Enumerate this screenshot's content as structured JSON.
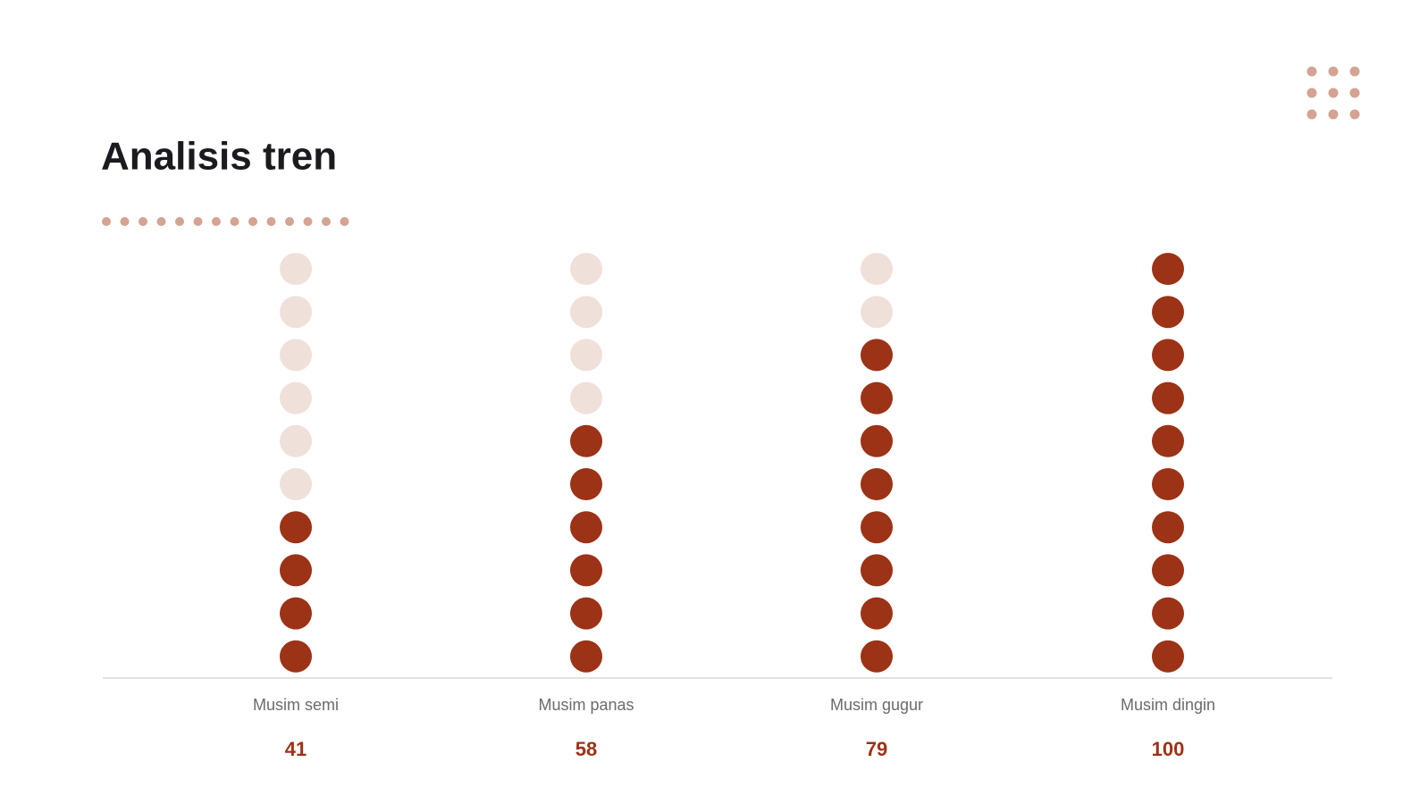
{
  "chart_data": {
    "type": "dot",
    "title": "Analisis tren",
    "categories": [
      "Musim semi",
      "Musim panas",
      "Musim gugur",
      "Musim dingin"
    ],
    "values": [
      41,
      58,
      79,
      100
    ],
    "ylim": [
      0,
      100
    ],
    "color": "#9c3216",
    "empty_color": "#f0e0da"
  }
}
